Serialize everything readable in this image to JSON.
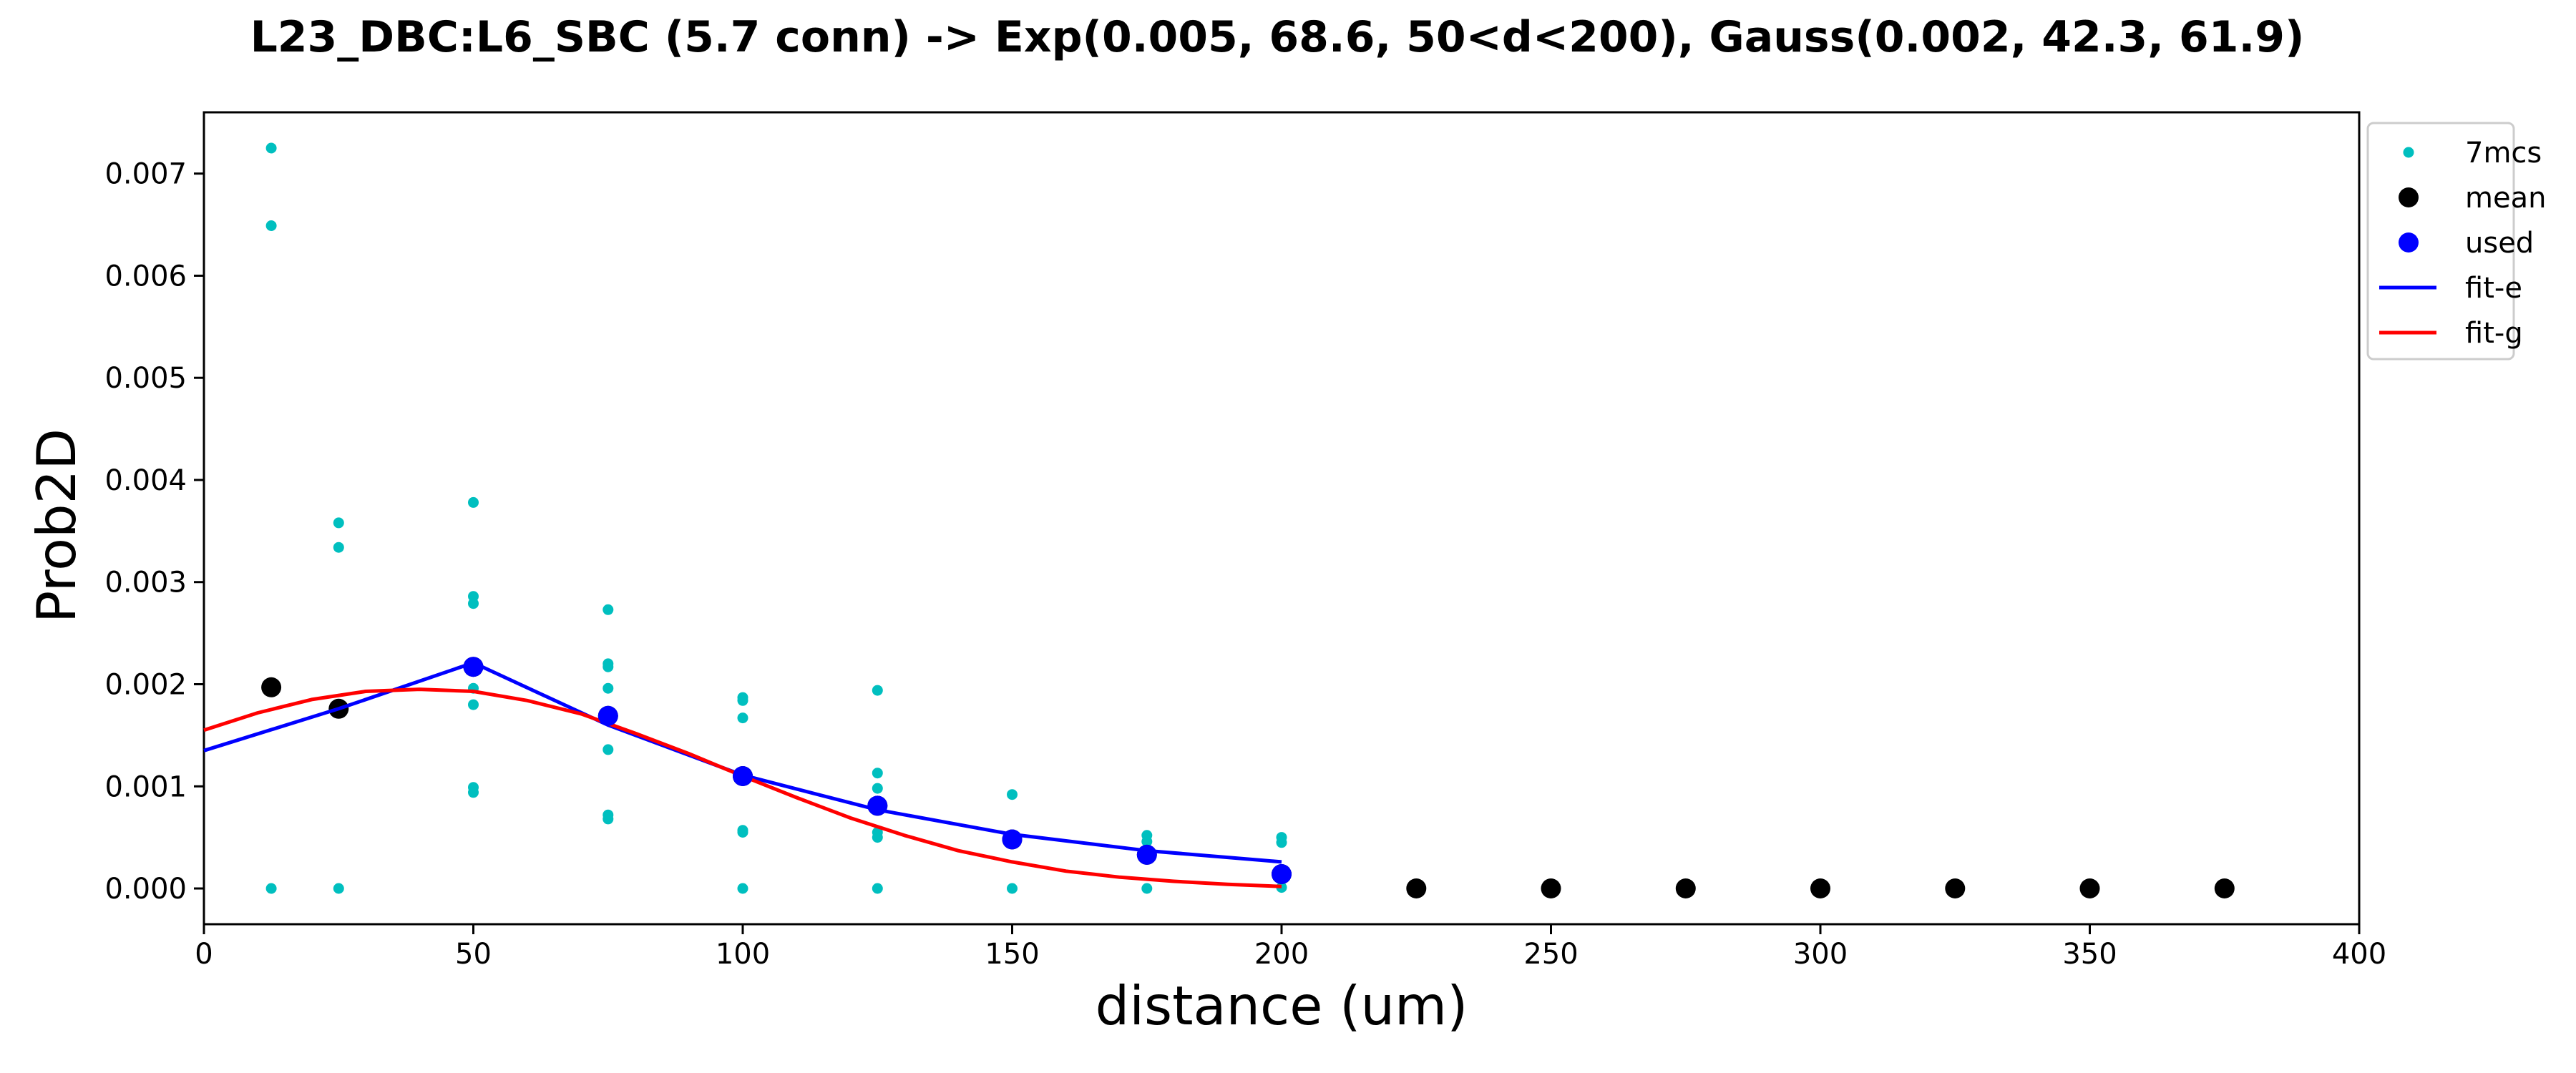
{
  "chart_data": {
    "type": "scatter",
    "title": "L23_DBC:L6_SBC (5.7 conn) -> Exp(0.005, 68.6, 50<d<200), Gauss(0.002, 42.3, 61.9)",
    "xlabel": "distance (um)",
    "ylabel": "Prob2D",
    "xlim": [
      0,
      400
    ],
    "ylim": [
      -0.00035,
      0.0076
    ],
    "x_ticks": [
      0,
      50,
      100,
      150,
      200,
      250,
      300,
      350,
      400
    ],
    "x_tick_labels": [
      "0",
      "50",
      "100",
      "150",
      "200",
      "250",
      "300",
      "350",
      "400"
    ],
    "y_ticks": [
      0,
      0.001,
      0.002,
      0.003,
      0.004,
      0.005,
      0.006,
      0.007
    ],
    "y_tick_labels": [
      "0.000",
      "0.001",
      "0.002",
      "0.003",
      "0.004",
      "0.005",
      "0.006",
      "0.007"
    ],
    "grid": false,
    "legend_position": "outside right, top",
    "series": [
      {
        "name": "7mcs",
        "kind": "points-small",
        "color": "#00bfbf",
        "points": [
          [
            12.5,
            0.00725
          ],
          [
            12.5,
            0.00649
          ],
          [
            12.5,
            0.0
          ],
          [
            25,
            0.00358
          ],
          [
            25,
            0.00334
          ],
          [
            25,
            0.0
          ],
          [
            50,
            0.00378
          ],
          [
            50,
            0.00286
          ],
          [
            50,
            0.00279
          ],
          [
            50,
            0.00213
          ],
          [
            50,
            0.00196
          ],
          [
            50,
            0.0018
          ],
          [
            50,
            0.00099
          ],
          [
            50,
            0.00094
          ],
          [
            75,
            0.00273
          ],
          [
            75,
            0.0022
          ],
          [
            75,
            0.00217
          ],
          [
            75,
            0.00196
          ],
          [
            75,
            0.00172
          ],
          [
            75,
            0.00136
          ],
          [
            75,
            0.00072
          ],
          [
            75,
            0.00068
          ],
          [
            100,
            0.00187
          ],
          [
            100,
            0.00184
          ],
          [
            100,
            0.00167
          ],
          [
            100,
            0.00057
          ],
          [
            100,
            0.00055
          ],
          [
            100,
            0.0
          ],
          [
            125,
            0.00194
          ],
          [
            125,
            0.00113
          ],
          [
            125,
            0.00098
          ],
          [
            125,
            0.00055
          ],
          [
            125,
            0.0005
          ],
          [
            125,
            0.0
          ],
          [
            150,
            0.00092
          ],
          [
            150,
            0.0
          ],
          [
            175,
            0.00052
          ],
          [
            175,
            0.00046
          ],
          [
            175,
            0.0
          ],
          [
            200,
            0.0005
          ],
          [
            200,
            0.00045
          ],
          [
            200,
            1e-05
          ]
        ]
      },
      {
        "name": "mean",
        "kind": "points-large",
        "color": "#000000",
        "points": [
          [
            12.5,
            0.00197
          ],
          [
            25,
            0.00176
          ],
          [
            50,
            0.00217
          ],
          [
            75,
            0.00169
          ],
          [
            100,
            0.0011
          ],
          [
            125,
            0.00081
          ],
          [
            150,
            0.00048
          ],
          [
            175,
            0.00033
          ],
          [
            200,
            0.00014
          ],
          [
            225,
            0.0
          ],
          [
            250,
            0.0
          ],
          [
            275,
            0.0
          ],
          [
            300,
            0.0
          ],
          [
            325,
            0.0
          ],
          [
            350,
            0.0
          ],
          [
            375,
            0.0
          ]
        ]
      },
      {
        "name": "used",
        "kind": "points-large",
        "color": "#0000ff",
        "points": [
          [
            50,
            0.00217
          ],
          [
            75,
            0.00169
          ],
          [
            100,
            0.0011
          ],
          [
            125,
            0.00081
          ],
          [
            150,
            0.00048
          ],
          [
            175,
            0.00033
          ],
          [
            200,
            0.00014
          ]
        ]
      },
      {
        "name": "fit-e",
        "kind": "line",
        "color": "#0000ff",
        "points": [
          [
            0,
            0.00135
          ],
          [
            25,
            0.00176
          ],
          [
            50,
            0.00221
          ],
          [
            75,
            0.0016
          ],
          [
            100,
            0.00111
          ],
          [
            125,
            0.00077
          ],
          [
            150,
            0.00053
          ],
          [
            175,
            0.00037
          ],
          [
            200,
            0.00026
          ]
        ]
      },
      {
        "name": "fit-g",
        "kind": "line",
        "color": "#ff0000",
        "points": [
          [
            0,
            0.00155
          ],
          [
            10,
            0.00172
          ],
          [
            20,
            0.00185
          ],
          [
            30,
            0.00193
          ],
          [
            40,
            0.00195
          ],
          [
            50,
            0.00193
          ],
          [
            60,
            0.00184
          ],
          [
            70,
            0.00171
          ],
          [
            80,
            0.00152
          ],
          [
            90,
            0.00132
          ],
          [
            100,
            0.0011
          ],
          [
            110,
            0.00089
          ],
          [
            120,
            0.00069
          ],
          [
            130,
            0.00052
          ],
          [
            140,
            0.00037
          ],
          [
            150,
            0.00026
          ],
          [
            160,
            0.00017
          ],
          [
            170,
            0.00011
          ],
          [
            180,
            7e-05
          ],
          [
            190,
            4e-05
          ],
          [
            200,
            2e-05
          ]
        ]
      }
    ]
  }
}
